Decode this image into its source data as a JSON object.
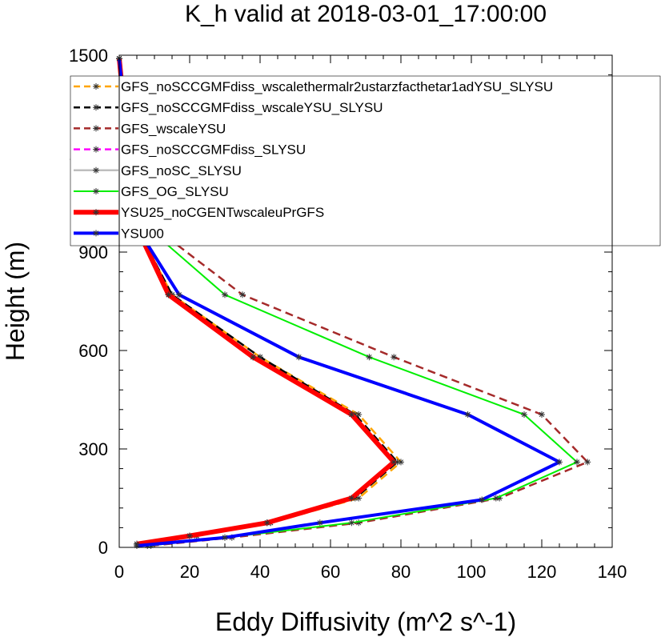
{
  "chart_data": {
    "type": "line",
    "title": "K_h valid at 2018-03-01_17:00:00",
    "xlabel": "Eddy Diffusivity (m^2 s^-1)",
    "ylabel": "Height (m)",
    "xlim": [
      0,
      140
    ],
    "ylim": [
      0,
      1500
    ],
    "xticks": [
      0,
      20,
      40,
      60,
      80,
      100,
      120,
      140
    ],
    "yticks": [
      0,
      300,
      600,
      900,
      1200,
      1500
    ],
    "grid": false,
    "legend_position": "top-right",
    "series": [
      {
        "name": "GFS_noSCCGMFdiss_wscalethermalr2ustarzfacthetar1adYSU_SLYSU",
        "color": "#FFA500",
        "dash": "dashed",
        "width": 2.5,
        "x": [
          5,
          22,
          43,
          68,
          80,
          68,
          40,
          15,
          5,
          2,
          1,
          0
        ],
        "y": [
          10,
          35,
          75,
          150,
          260,
          405,
          580,
          770,
          975,
          1230,
          1380,
          1490
        ]
      },
      {
        "name": "GFS_noSCCGMFdiss_wscaleYSU_SLYSU",
        "color": "#000000",
        "dash": "dashed",
        "width": 2.5,
        "x": [
          5,
          22,
          43,
          67,
          79,
          67,
          40,
          15,
          5,
          2,
          1,
          0
        ],
        "y": [
          10,
          35,
          75,
          150,
          260,
          405,
          580,
          770,
          975,
          1230,
          1380,
          1490
        ]
      },
      {
        "name": "GFS_wscaleYSU",
        "color": "#A52A2A",
        "dash": "dashed",
        "width": 2.5,
        "x": [
          9,
          32,
          68,
          108,
          133,
          120,
          78,
          35,
          10,
          3,
          1,
          0
        ],
        "y": [
          5,
          30,
          75,
          150,
          260,
          405,
          580,
          770,
          975,
          1230,
          1380,
          1490
        ]
      },
      {
        "name": "GFS_noSCCGMFdiss_SLYSU",
        "color": "#FF00FF",
        "dash": "dashed",
        "width": 2.5,
        "x": [
          5,
          20,
          42,
          66,
          78,
          66,
          38,
          14,
          5,
          2,
          1,
          0
        ],
        "y": [
          10,
          35,
          75,
          150,
          260,
          405,
          580,
          770,
          975,
          1230,
          1380,
          1490
        ]
      },
      {
        "name": "GFS_noSC_SLYSU",
        "color": "#BEBEBE",
        "dash": "solid",
        "width": 2.5,
        "x": [
          5,
          20,
          42,
          66,
          78,
          66,
          38,
          14,
          5,
          2,
          1,
          0
        ],
        "y": [
          10,
          35,
          75,
          150,
          260,
          405,
          580,
          770,
          975,
          1230,
          1380,
          1490
        ]
      },
      {
        "name": "GFS_OG_SLYSU",
        "color": "#00EE00",
        "dash": "solid",
        "width": 2,
        "x": [
          8,
          30,
          66,
          107,
          130,
          115,
          71,
          30,
          8,
          2,
          1,
          0
        ],
        "y": [
          5,
          30,
          75,
          150,
          260,
          405,
          580,
          770,
          975,
          1230,
          1380,
          1490
        ]
      },
      {
        "name": "YSU25_noCGENTwscaleuPrGFS",
        "color": "#FF0000",
        "dash": "solid",
        "width": 6,
        "x": [
          5,
          20,
          42,
          66,
          78,
          66,
          38,
          14,
          5,
          2,
          1,
          0
        ],
        "y": [
          10,
          35,
          75,
          150,
          260,
          405,
          580,
          770,
          975,
          1230,
          1380,
          1490
        ]
      },
      {
        "name": "YSU00",
        "color": "#0000FF",
        "dash": "solid",
        "width": 4,
        "x": [
          5,
          30,
          57,
          103,
          125,
          99,
          51,
          17,
          5,
          2,
          1,
          0
        ],
        "y": [
          5,
          30,
          75,
          145,
          260,
          405,
          580,
          770,
          975,
          1230,
          1380,
          1490
        ]
      }
    ]
  }
}
